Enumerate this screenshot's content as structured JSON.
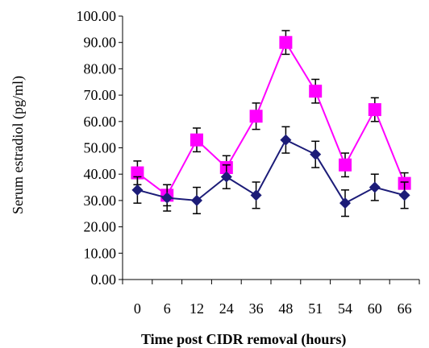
{
  "chart_data": {
    "type": "line",
    "xlabel": "Time post CIDR removal (hours)",
    "ylabel": "Serum estradiol (pg/ml)",
    "categories": [
      "0",
      "6",
      "12",
      "24",
      "36",
      "48",
      "51",
      "54",
      "60",
      "66"
    ],
    "y_ticks": [
      "0.00",
      "10.00",
      "20.00",
      "30.00",
      "40.00",
      "50.00",
      "60.00",
      "70.00",
      "80.00",
      "90.00",
      "100.00"
    ],
    "ylim": [
      0,
      100
    ],
    "grid": false,
    "legend": "none",
    "error_bars": true,
    "series": [
      {
        "marker": "square",
        "color": "#ff00ff",
        "values": [
          40.5,
          32.0,
          53.0,
          42.5,
          62.0,
          90.0,
          71.5,
          43.5,
          64.5,
          36.5
        ],
        "errors": [
          4.5,
          4.0,
          4.5,
          4.5,
          5.0,
          4.5,
          4.5,
          4.5,
          4.5,
          4.0
        ]
      },
      {
        "marker": "diamond",
        "color": "#1c1c78",
        "values": [
          34.0,
          31.0,
          30.0,
          39.0,
          32.0,
          53.0,
          47.5,
          29.0,
          35.0,
          32.0
        ],
        "errors": [
          5.0,
          5.0,
          5.0,
          4.5,
          5.0,
          5.0,
          5.0,
          5.0,
          5.0,
          5.0
        ]
      }
    ]
  }
}
